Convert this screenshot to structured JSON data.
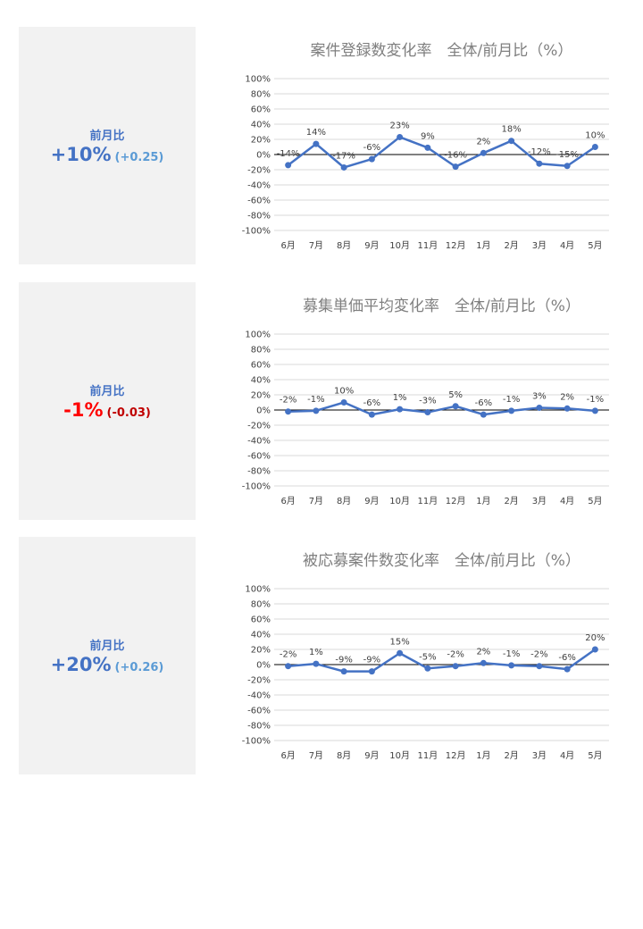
{
  "panels": [
    {
      "kpi": {
        "label": "前月比",
        "value": "+10%",
        "delta": "(+0.25)",
        "value_color": "#4472c4",
        "delta_color": "#5b9bd5"
      },
      "chart_data": {
        "type": "line",
        "title": "案件登録数変化率　全体/前月比（%）",
        "categories": [
          "6月",
          "7月",
          "8月",
          "9月",
          "10月",
          "11月",
          "12月",
          "1月",
          "2月",
          "3月",
          "4月",
          "5月"
        ],
        "series": [
          {
            "values": [
              -14,
              14,
              -17,
              -6,
              23,
              9,
              -16,
              2,
              18,
              -12,
              -15,
              10
            ]
          }
        ],
        "data_labels": [
          "-14%",
          "14%",
          "-17%",
          "-6%",
          "23%",
          "9%",
          "-16%",
          "2%",
          "18%",
          "-12%",
          "-15%",
          "10%"
        ],
        "y_ticks": [
          "100%",
          "80%",
          "60%",
          "40%",
          "20%",
          "0%",
          "-20%",
          "-40%",
          "-60%",
          "-80%",
          "-100%"
        ],
        "ylim": [
          -100,
          100
        ],
        "line_color": "#4472c4",
        "grid": true
      }
    },
    {
      "kpi": {
        "label": "前月比",
        "value": "-1%",
        "delta": "(-0.03)",
        "value_color": "#ff0000",
        "delta_color": "#c00000"
      },
      "chart_data": {
        "type": "line",
        "title": "募集単価平均変化率　全体/前月比（%）",
        "categories": [
          "6月",
          "7月",
          "8月",
          "9月",
          "10月",
          "11月",
          "12月",
          "1月",
          "2月",
          "3月",
          "4月",
          "5月"
        ],
        "series": [
          {
            "values": [
              -2,
              -1,
              10,
              -6,
              1,
              -3,
              5,
              -6,
              -1,
              3,
              2,
              -1
            ]
          }
        ],
        "data_labels": [
          "-2%",
          "-1%",
          "10%",
          "-6%",
          "1%",
          "-3%",
          "5%",
          "-6%",
          "-1%",
          "3%",
          "2%",
          "-1%"
        ],
        "y_ticks": [
          "100%",
          "80%",
          "60%",
          "40%",
          "20%",
          "0%",
          "-20%",
          "-40%",
          "-60%",
          "-80%",
          "-100%"
        ],
        "ylim": [
          -100,
          100
        ],
        "line_color": "#4472c4",
        "grid": true
      }
    },
    {
      "kpi": {
        "label": "前月比",
        "value": "+20%",
        "delta": "(+0.26)",
        "value_color": "#4472c4",
        "delta_color": "#5b9bd5"
      },
      "chart_data": {
        "type": "line",
        "title": "被応募案件数変化率　全体/前月比（%）",
        "categories": [
          "6月",
          "7月",
          "8月",
          "9月",
          "10月",
          "11月",
          "12月",
          "1月",
          "2月",
          "3月",
          "4月",
          "5月"
        ],
        "series": [
          {
            "values": [
              -2,
              1,
              -9,
              -9,
              15,
              -5,
              -2,
              2,
              -1,
              -2,
              -6,
              20
            ]
          }
        ],
        "data_labels": [
          "-2%",
          "1%",
          "-9%",
          "-9%",
          "15%",
          "-5%",
          "-2%",
          "2%",
          "-1%",
          "-2%",
          "-6%",
          "20%"
        ],
        "y_ticks": [
          "100%",
          "80%",
          "60%",
          "40%",
          "20%",
          "0%",
          "-20%",
          "-40%",
          "-60%",
          "-80%",
          "-100%"
        ],
        "ylim": [
          -100,
          100
        ],
        "line_color": "#4472c4",
        "grid": true
      }
    }
  ]
}
